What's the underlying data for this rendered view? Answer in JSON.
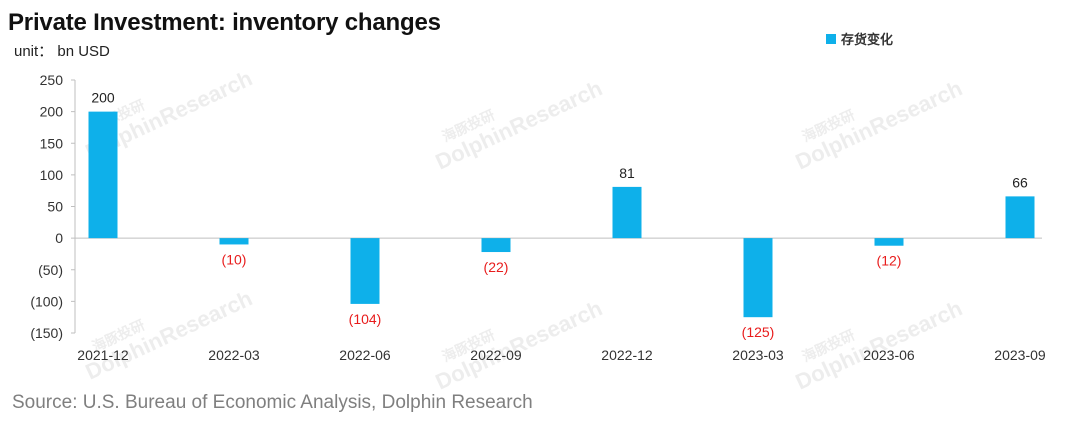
{
  "chart_data": {
    "type": "bar",
    "title": "Private Investment: inventory changes",
    "unit_label": "unit： bn USD",
    "categories": [
      "2021-12",
      "2022-03",
      "2022-06",
      "2022-09",
      "2022-12",
      "2023-03",
      "2023-06",
      "2023-09"
    ],
    "series": [
      {
        "name": "存货变化",
        "values": [
          200,
          -10,
          -104,
          -22,
          81,
          -125,
          -12,
          66
        ],
        "data_labels": [
          "200",
          "(10)",
          "(104)",
          "(22)",
          "81",
          "(125)",
          "(12)",
          "66"
        ]
      }
    ],
    "ylim": [
      -150,
      250
    ],
    "yticks": [
      250,
      200,
      150,
      100,
      50,
      0,
      -50,
      -100,
      -150
    ],
    "ytick_labels": [
      "250",
      "200",
      "150",
      "100",
      "50",
      "0",
      "(50)",
      "(100)",
      "(150)"
    ],
    "grid": false,
    "legend_position": "top-right",
    "colors": {
      "bar": "#0eb0ea",
      "positive_label": "#222222",
      "negative_label": "#e81c1c"
    }
  },
  "source": "Source: U.S. Bureau of Economic Analysis, Dolphin Research",
  "watermark": {
    "logo_text": "海豚投研",
    "brand_text": "DolphinResearch"
  }
}
